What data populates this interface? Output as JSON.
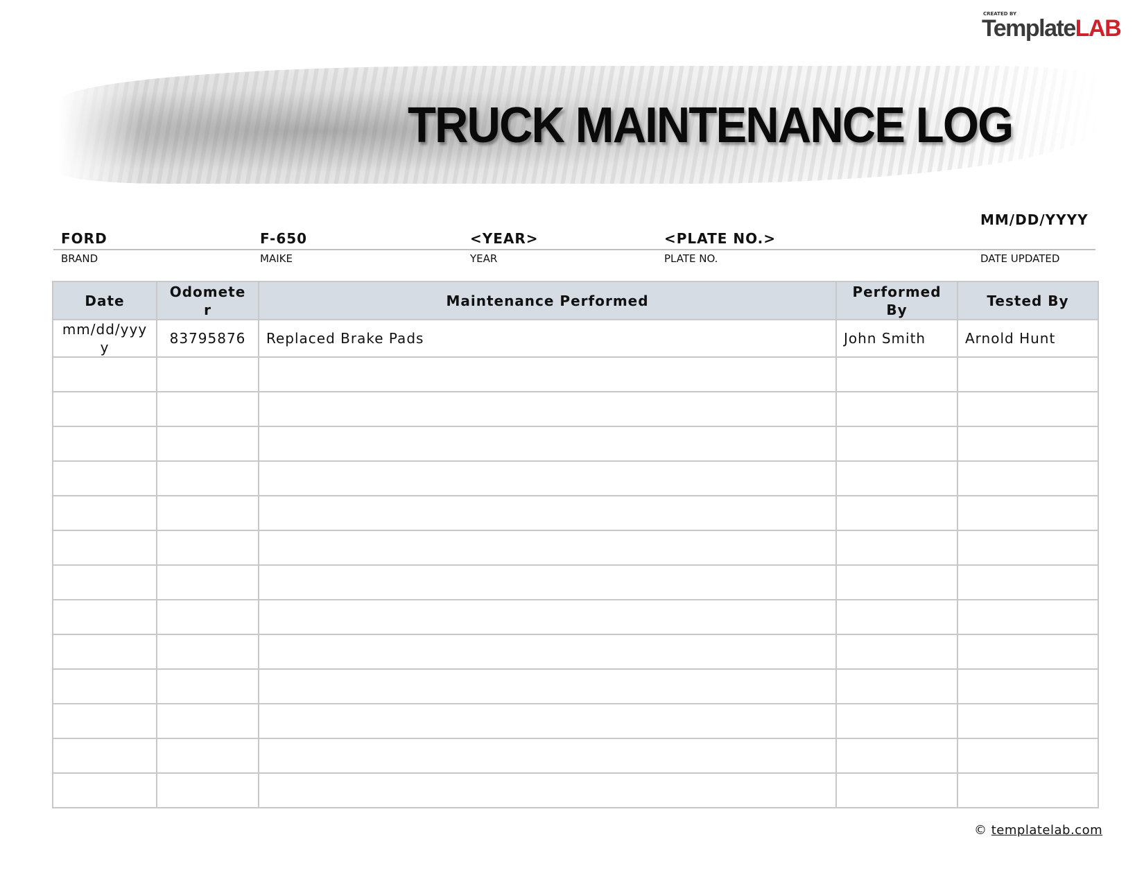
{
  "logo": {
    "created_by": "CREATED BY",
    "text_dark": "Template",
    "text_red": "LAB"
  },
  "title": "TRUCK MAINTENANCE LOG",
  "info": [
    {
      "value": "FORD",
      "label": "BRAND"
    },
    {
      "value": "F-650",
      "label": "MAIKE"
    },
    {
      "value": "<YEAR>",
      "label": "YEAR"
    },
    {
      "value": "<PLATE NO.>",
      "label": "PLATE NO."
    },
    {
      "value": "MM/DD/YYYY",
      "label": "DATE UPDATED"
    }
  ],
  "table": {
    "headers": [
      "Date",
      "Odometer",
      "Maintenance Performed",
      "Performed By",
      "Tested By"
    ],
    "rows": [
      [
        "mm/dd/yyyy",
        "83795876",
        "Replaced Brake Pads",
        "John Smith",
        "Arnold Hunt"
      ]
    ],
    "empty_rows": 13,
    "header_color": "#d6dce4"
  },
  "footer": {
    "symbol": "©",
    "link": "templatelab.com"
  }
}
